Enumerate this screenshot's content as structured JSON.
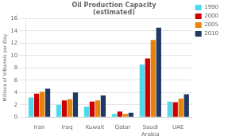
{
  "chart_data": {
    "type": "bar",
    "title": "Oil Production Capacity\n(estimated)",
    "ylabel": "Millions of V/Barrels per Day",
    "categories": [
      "Iran",
      "Iraq",
      "Kuwait",
      "Qatar",
      "Saudi\nArabia",
      "UAE"
    ],
    "series": [
      {
        "name": "1990",
        "color": "#4DD9EC",
        "values": [
          3.2,
          2.0,
          1.7,
          0.5,
          8.5,
          2.5
        ]
      },
      {
        "name": "2000",
        "color": "#CC0000",
        "values": [
          3.8,
          2.7,
          2.5,
          0.9,
          9.5,
          2.4
        ]
      },
      {
        "name": "2005",
        "color": "#E8820C",
        "values": [
          4.1,
          2.9,
          2.7,
          0.5,
          12.5,
          3.0
        ]
      },
      {
        "name": "2010",
        "color": "#1F3864",
        "values": [
          4.6,
          4.0,
          3.5,
          0.7,
          14.5,
          3.7
        ]
      }
    ],
    "ylim": [
      0,
      16
    ],
    "yticks": [
      0,
      2,
      4,
      6,
      8,
      10,
      12,
      14,
      16
    ],
    "grid": true,
    "legend": "right"
  }
}
